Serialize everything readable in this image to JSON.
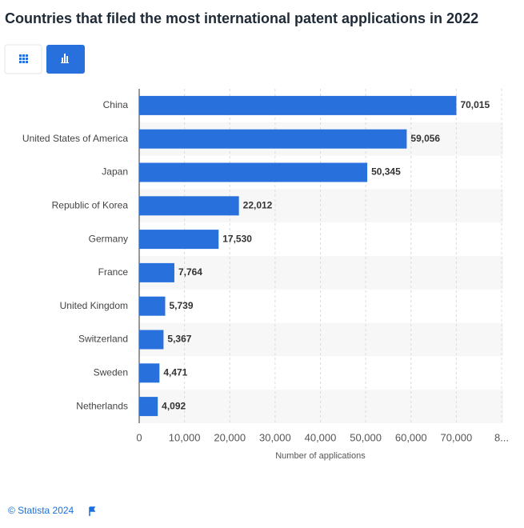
{
  "chart_data": {
    "type": "bar",
    "orientation": "horizontal",
    "title": "Countries that filed the most international patent applications in 2022",
    "categories": [
      "China",
      "United States of America",
      "Japan",
      "Republic of Korea",
      "Germany",
      "France",
      "United Kingdom",
      "Switzerland",
      "Sweden",
      "Netherlands"
    ],
    "values": [
      70015,
      59056,
      50345,
      22012,
      17530,
      7764,
      5739,
      5367,
      4471,
      4092
    ],
    "value_labels": [
      "70,015",
      "59,056",
      "50,345",
      "22,012",
      "17,530",
      "7,764",
      "5,739",
      "5,367",
      "4,471",
      "4,092"
    ],
    "color": "#2871dc",
    "xlim": [
      0,
      80000
    ],
    "xticks": [
      0,
      {
        "value": 10000,
        "label": "10,000"
      },
      {
        "value": 20000,
        "label": "20,000"
      },
      {
        "value": 30000,
        "label": "30,000"
      },
      {
        "value": 40000,
        "label": "40,000"
      },
      {
        "value": 50000,
        "label": "50,000"
      },
      {
        "value": 60000,
        "label": "60,000"
      },
      {
        "value": 70000,
        "label": "70,000"
      },
      {
        "value": 80000,
        "label": "8..."
      }
    ],
    "xlabel": "Number of applications",
    "grid": true
  },
  "footer": "© Statista 2024"
}
